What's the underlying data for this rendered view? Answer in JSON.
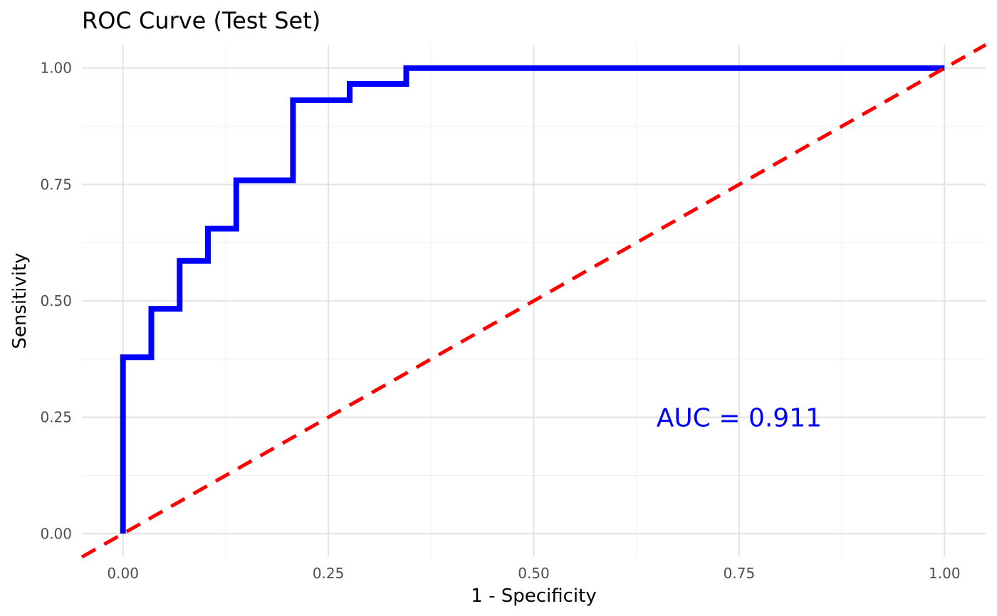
{
  "chart_data": {
    "type": "line",
    "title": "ROC Curve (Test Set)",
    "xlabel": "1 - Specificity",
    "ylabel": "Sensitivity",
    "xlim": [
      -0.05,
      1.05
    ],
    "ylim": [
      -0.05,
      1.05
    ],
    "x_ticks": [
      0.0,
      0.25,
      0.5,
      0.75,
      1.0
    ],
    "x_tick_labels": [
      "0.00",
      "0.25",
      "0.50",
      "0.75",
      "1.00"
    ],
    "y_ticks": [
      0.0,
      0.25,
      0.5,
      0.75,
      1.0
    ],
    "y_tick_labels": [
      "0.00",
      "0.25",
      "0.50",
      "0.75",
      "1.00"
    ],
    "grid": true,
    "series": [
      {
        "style": "step",
        "color": "#0000ff",
        "points": [
          [
            0.0,
            0.0
          ],
          [
            0.0,
            0.379
          ],
          [
            0.0345,
            0.379
          ],
          [
            0.0345,
            0.483
          ],
          [
            0.069,
            0.483
          ],
          [
            0.069,
            0.586
          ],
          [
            0.1034,
            0.586
          ],
          [
            0.1034,
            0.655
          ],
          [
            0.1379,
            0.655
          ],
          [
            0.1379,
            0.759
          ],
          [
            0.2069,
            0.759
          ],
          [
            0.2069,
            0.931
          ],
          [
            0.2759,
            0.931
          ],
          [
            0.2759,
            0.966
          ],
          [
            0.3448,
            0.966
          ],
          [
            0.3448,
            1.0
          ],
          [
            1.0,
            1.0
          ]
        ]
      },
      {
        "style": "dashed",
        "color": "#ff0000",
        "points": [
          [
            -0.05,
            -0.05
          ],
          [
            1.05,
            1.05
          ]
        ]
      }
    ],
    "annotations": [
      {
        "text": "AUC = 0.911",
        "x": 0.75,
        "y": 0.25,
        "color": "#0000ff"
      }
    ]
  }
}
